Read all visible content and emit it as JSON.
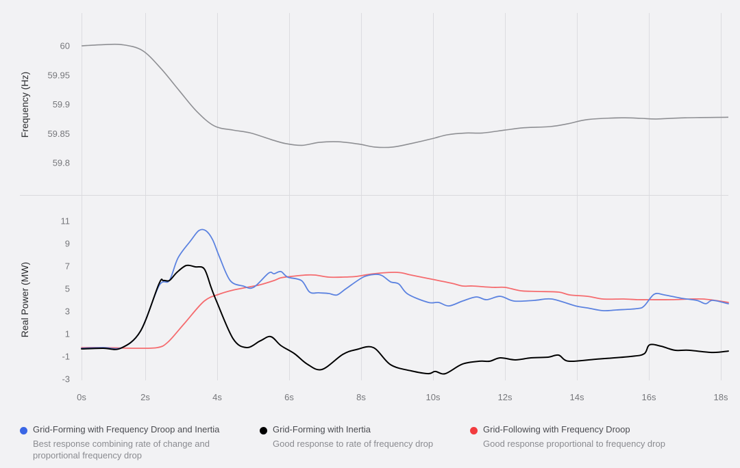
{
  "chart_data": [
    {
      "type": "line",
      "title": "",
      "ylabel": "Frequency (Hz)",
      "xlabel": "",
      "ylim": [
        59.75,
        60.06
      ],
      "yticks": [
        60,
        59.95,
        59.9,
        59.85,
        59.8
      ],
      "ytick_labels": [
        "60",
        "59.95",
        "59.9",
        "59.85",
        "59.8"
      ],
      "grid": "vertical",
      "series": [
        {
          "name": "Frequency",
          "color": "#8e8f93",
          "x": [
            0,
            0.67,
            1.27,
            1.91,
            2.44,
            2.95,
            3.43,
            3.92,
            4.44,
            4.93,
            5.49,
            5.9,
            6.36,
            6.84,
            7.37,
            7.94,
            8.38,
            8.88,
            9.39,
            9.96,
            10.4,
            10.91,
            11.37,
            12.0,
            12.53,
            13.26,
            13.77,
            14.3,
            15.24,
            15.79,
            16.21,
            17.01,
            18.21
          ],
          "values": [
            60.0,
            60.002,
            60.002,
            59.992,
            59.961,
            59.923,
            59.888,
            59.863,
            59.856,
            59.851,
            59.84,
            59.833,
            59.83,
            59.835,
            59.836,
            59.832,
            59.827,
            59.827,
            59.833,
            59.841,
            59.848,
            59.851,
            59.851,
            59.856,
            59.86,
            59.862,
            59.867,
            59.874,
            59.877,
            59.876,
            59.875,
            59.877,
            59.878
          ]
        }
      ]
    },
    {
      "type": "line",
      "title": "",
      "ylabel": "Real Power (MW)",
      "xlabel": "",
      "xlim": [
        0,
        18.21
      ],
      "ylim": [
        -3,
        12.5
      ],
      "xticks": [
        0,
        2,
        4,
        6,
        8,
        10,
        12,
        14,
        16,
        18
      ],
      "xtick_labels": [
        "0s",
        "2s",
        "4s",
        "6s",
        "8s",
        "10s",
        "12s",
        "14s",
        "16s",
        "18s"
      ],
      "yticks": [
        11,
        9,
        7,
        5,
        3,
        1,
        -1,
        -3
      ],
      "ytick_labels": [
        "11",
        "9",
        "7",
        "5",
        "3",
        "1",
        "-1",
        "-3"
      ],
      "grid": "vertical",
      "legend": "bottom",
      "series": [
        {
          "name": "Grid-Forming with Frequency Droop and Inertia",
          "description": "Best response combining rate of change and proportional frequency drop",
          "color": "#5b82e0",
          "legend_color": "#3a66e5",
          "x": [
            0,
            0.67,
            1.27,
            1.85,
            2.38,
            2.67,
            2.91,
            3.26,
            3.49,
            3.68,
            3.87,
            4.06,
            4.36,
            4.72,
            5.01,
            5.43,
            5.58,
            5.77,
            5.96,
            6.34,
            6.57,
            6.82,
            7.1,
            7.33,
            7.58,
            8.06,
            8.4,
            8.59,
            8.82,
            9.05,
            9.3,
            9.87,
            10.15,
            10.44,
            10.82,
            11.2,
            11.49,
            11.87,
            12.25,
            12.82,
            13.3,
            13.96,
            14.3,
            14.72,
            15.1,
            15.68,
            15.87,
            16.15,
            16.44,
            16.91,
            17.33,
            17.58,
            17.77,
            18.21
          ],
          "values": [
            -0.27,
            -0.21,
            -0.21,
            1.24,
            5.24,
            5.73,
            7.73,
            9.24,
            10.15,
            10.15,
            9.36,
            7.85,
            5.73,
            5.24,
            5.12,
            6.39,
            6.33,
            6.52,
            6.03,
            5.73,
            4.7,
            4.64,
            4.58,
            4.45,
            5.0,
            6.03,
            6.27,
            6.15,
            5.61,
            5.42,
            4.52,
            3.79,
            3.79,
            3.48,
            3.91,
            4.27,
            4.03,
            4.33,
            3.91,
            3.97,
            4.09,
            3.48,
            3.3,
            3.06,
            3.12,
            3.24,
            3.48,
            4.52,
            4.45,
            4.15,
            3.97,
            3.67,
            3.97,
            3.67
          ]
        },
        {
          "name": "Grid-Forming with Inertia",
          "description": "Good response to rate of frequency drop",
          "color": "#000000",
          "legend_color": "#000000",
          "x": [
            0,
            0.67,
            1.23,
            1.85,
            2.38,
            2.5,
            2.67,
            2.88,
            3.14,
            3.39,
            3.64,
            3.83,
            3.98,
            4.44,
            4.82,
            5.2,
            5.49,
            5.77,
            6.15,
            6.5,
            6.91,
            7.49,
            7.87,
            8.34,
            8.82,
            9.39,
            9.87,
            10.06,
            10.34,
            10.82,
            11.3,
            11.58,
            11.87,
            12.29,
            12.72,
            13.2,
            13.49,
            13.77,
            14.53,
            15.49,
            15.87,
            16.02,
            16.34,
            16.72,
            17.1,
            17.77,
            18.21
          ],
          "values": [
            -0.33,
            -0.27,
            -0.27,
            1.24,
            5.42,
            5.73,
            5.73,
            6.45,
            7.06,
            6.94,
            6.76,
            5.12,
            3.91,
            0.58,
            -0.21,
            0.39,
            0.76,
            -0.03,
            -0.76,
            -1.67,
            -2.15,
            -0.82,
            -0.39,
            -0.21,
            -1.73,
            -2.27,
            -2.52,
            -2.33,
            -2.52,
            -1.67,
            -1.42,
            -1.42,
            -1.12,
            -1.3,
            -1.12,
            -1.06,
            -0.88,
            -1.42,
            -1.24,
            -1.0,
            -0.76,
            0.03,
            -0.09,
            -0.45,
            -0.45,
            -0.64,
            -0.52
          ]
        },
        {
          "name": "Grid-Following with Frequency Droop",
          "description": "Good response proportional to frequency drop",
          "color": "#f56b6e",
          "legend_color": "#f23c3f",
          "x": [
            0,
            0.67,
            1.74,
            2.34,
            2.63,
            3.1,
            3.64,
            4.06,
            4.44,
            4.82,
            5.2,
            5.58,
            5.77,
            6.06,
            6.44,
            6.72,
            7.1,
            7.49,
            7.87,
            8.34,
            9.01,
            9.39,
            9.96,
            10.53,
            10.82,
            11.1,
            11.68,
            12.0,
            12.44,
            12.91,
            13.49,
            13.81,
            14.3,
            14.72,
            15.3,
            15.68,
            16.0,
            16.63,
            17.49,
            18.21
          ],
          "values": [
            -0.21,
            -0.21,
            -0.27,
            -0.21,
            0.27,
            1.97,
            3.91,
            4.52,
            4.88,
            5.12,
            5.36,
            5.73,
            5.97,
            6.09,
            6.21,
            6.21,
            6.03,
            6.03,
            6.09,
            6.33,
            6.45,
            6.21,
            5.85,
            5.48,
            5.24,
            5.24,
            5.12,
            5.12,
            4.82,
            4.76,
            4.7,
            4.45,
            4.33,
            4.09,
            4.09,
            4.03,
            4.03,
            4.03,
            4.09,
            3.79
          ]
        }
      ]
    }
  ]
}
